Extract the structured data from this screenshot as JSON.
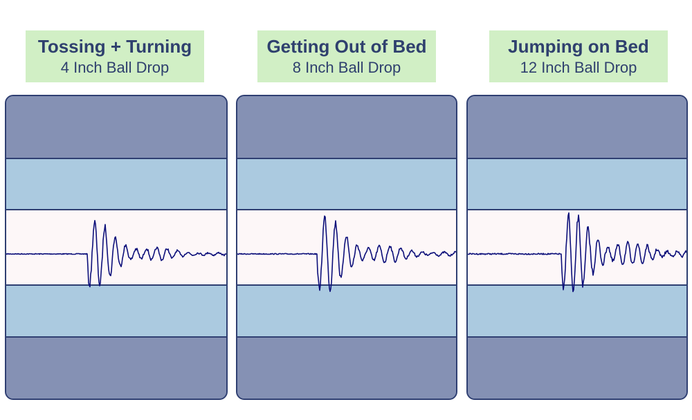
{
  "panels": [
    {
      "title": "Tossing + Turning",
      "subtitle": "4 Inch Ball Drop",
      "colors": {
        "wave": "#0c0f7a"
      }
    },
    {
      "title": "Getting Out of Bed",
      "subtitle": "8 Inch Ball Drop",
      "colors": {
        "wave": "#0c0f7a"
      }
    },
    {
      "title": "Jumping on Bed",
      "subtitle": "12 Inch Ball Drop",
      "colors": {
        "wave": "#0c0f7a"
      }
    }
  ]
}
